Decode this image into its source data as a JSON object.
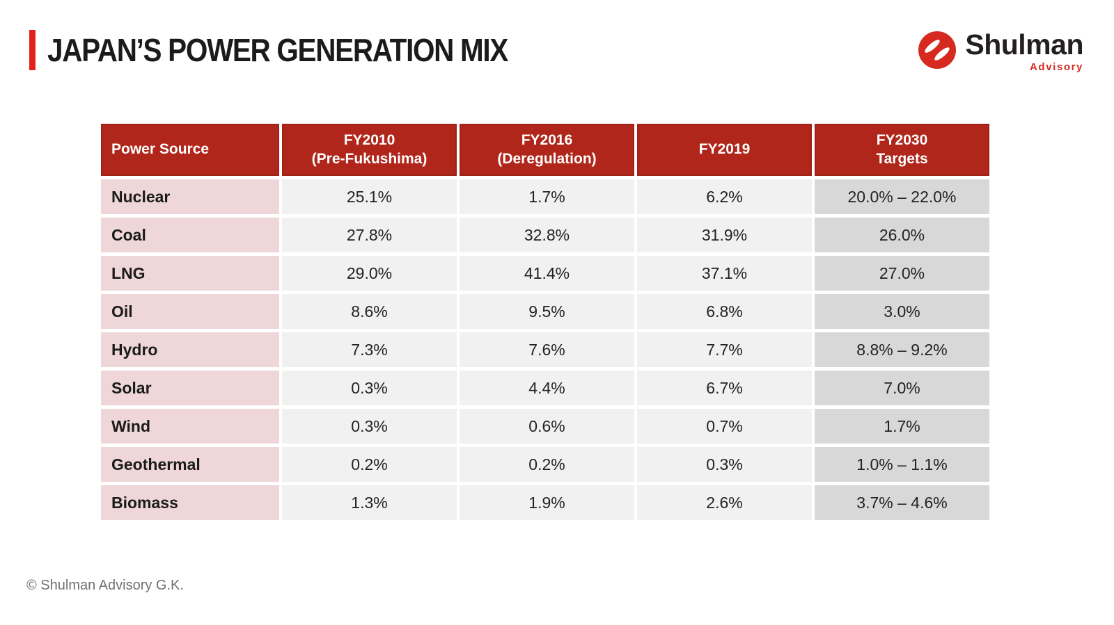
{
  "header": {
    "title": "JAPAN’S POWER GENERATION MIX"
  },
  "logo": {
    "wordmark": "Shulman",
    "subtitle": "Advisory",
    "icon": "shulman-circle-slashes-icon"
  },
  "footer": {
    "copyright": "© Shulman Advisory G.K."
  },
  "colors": {
    "header_red": "#B0261A",
    "accent_red": "#E0241B",
    "logo_red": "#D6291F",
    "row_label_pink": "#EED6D9",
    "cell_gray": "#F2F1F1",
    "target_column_gray": "#D9D8D8",
    "title_text": "#1B1B1B",
    "footer_gray": "#707070"
  },
  "chart_data": {
    "type": "table",
    "title": "JAPAN’S POWER GENERATION MIX",
    "columns": [
      {
        "id": "power_source",
        "lines": [
          "Power Source"
        ]
      },
      {
        "id": "fy2010",
        "lines": [
          "FY2010",
          "(Pre-Fukushima)"
        ]
      },
      {
        "id": "fy2016",
        "lines": [
          "FY2016",
          "(Deregulation)"
        ]
      },
      {
        "id": "fy2019",
        "lines": [
          "FY2019"
        ]
      },
      {
        "id": "fy2030",
        "lines": [
          "FY2030",
          "Targets"
        ]
      }
    ],
    "rows": [
      {
        "label": "Nuclear",
        "values": [
          "25.1%",
          "1.7%",
          "6.2%",
          "20.0% – 22.0%"
        ]
      },
      {
        "label": "Coal",
        "values": [
          "27.8%",
          "32.8%",
          "31.9%",
          "26.0%"
        ]
      },
      {
        "label": "LNG",
        "values": [
          "29.0%",
          "41.4%",
          "37.1%",
          "27.0%"
        ]
      },
      {
        "label": "Oil",
        "values": [
          "8.6%",
          "9.5%",
          "6.8%",
          "3.0%"
        ]
      },
      {
        "label": "Hydro",
        "values": [
          "7.3%",
          "7.6%",
          "7.7%",
          "8.8% – 9.2%"
        ]
      },
      {
        "label": "Solar",
        "values": [
          "0.3%",
          "4.4%",
          "6.7%",
          "7.0%"
        ]
      },
      {
        "label": "Wind",
        "values": [
          "0.3%",
          "0.6%",
          "0.7%",
          "1.7%"
        ]
      },
      {
        "label": "Geothermal",
        "values": [
          "0.2%",
          "0.2%",
          "0.3%",
          "1.0% – 1.1%"
        ]
      },
      {
        "label": "Biomass",
        "values": [
          "1.3%",
          "1.9%",
          "2.6%",
          "3.7% – 4.6%"
        ]
      }
    ]
  }
}
